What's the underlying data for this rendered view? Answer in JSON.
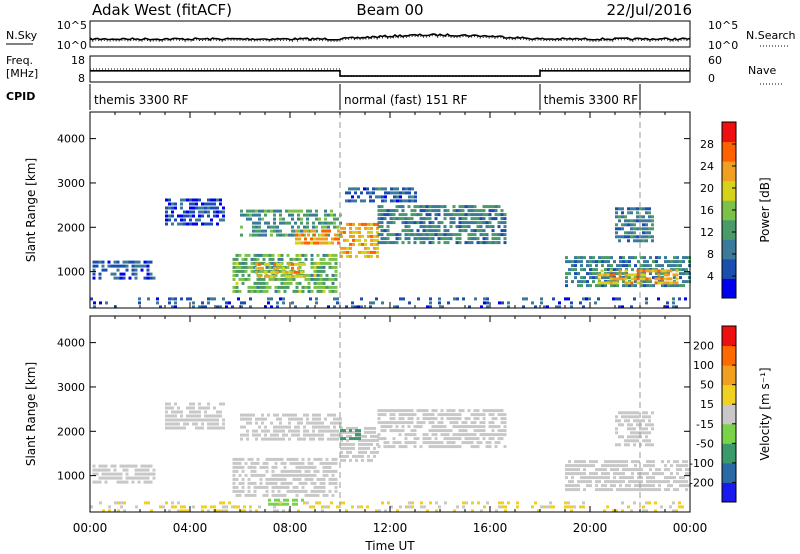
{
  "header": {
    "station": "Adak West (fitACF)",
    "beam": "Beam 00",
    "date": "22/Jul/2016"
  },
  "nsky_panel": {
    "left_label": "N.Sky",
    "right_label": "N.Search",
    "left_ticks": [
      "10^5",
      "10^0"
    ],
    "right_ticks": [
      "10^5",
      "10^0"
    ]
  },
  "freq_panel": {
    "left_label_line1": "Freq.",
    "left_label_line2": "[MHz]",
    "right_label": "Nave",
    "left_ticks": [
      "18",
      "8"
    ],
    "right_ticks": [
      "60",
      "0"
    ],
    "freq_steps": [
      {
        "from": 0,
        "to": 10,
        "mhz": 12.3
      },
      {
        "from": 10,
        "to": 18,
        "mhz": 10.3
      },
      {
        "from": 18,
        "to": 24,
        "mhz": 12.3
      }
    ],
    "nave_steps": [
      {
        "from": 0,
        "to": 10,
        "nave": 30
      },
      {
        "from": 10,
        "to": 18,
        "nave": 15
      },
      {
        "from": 18,
        "to": 24,
        "nave": 30
      }
    ]
  },
  "cpid_panel": {
    "label": "CPID",
    "segments": [
      {
        "from": 0,
        "to": 10,
        "label": "themis 3300 RF"
      },
      {
        "from": 10,
        "to": 18,
        "label": "normal (fast) 151 RF"
      },
      {
        "from": 18,
        "to": 22,
        "label": "themis 3300 RF"
      }
    ]
  },
  "x_axis": {
    "label": "Time UT",
    "range_hours": [
      0,
      24
    ],
    "ticks": [
      {
        "h": 0,
        "label": "00:00"
      },
      {
        "h": 4,
        "label": "04:00"
      },
      {
        "h": 8,
        "label": "08:00"
      },
      {
        "h": 12,
        "label": "12:00"
      },
      {
        "h": 16,
        "label": "16:00"
      },
      {
        "h": 20,
        "label": "20:00"
      },
      {
        "h": 24,
        "label": "00:00"
      }
    ],
    "dashed_marks_hours": [
      10,
      22
    ]
  },
  "chart_data": [
    {
      "type": "heatmap",
      "title": "Power",
      "ylabel": "Slant Range [km]",
      "ylim": [
        180,
        4600
      ],
      "yticks": [
        "1000",
        "2000",
        "3000",
        "4000"
      ],
      "ytick_values": [
        1000,
        2000,
        3000,
        4000
      ],
      "colorbar": {
        "label": "Power [dB]",
        "range": [
          0,
          32
        ],
        "ticks": [
          "4",
          "8",
          "12",
          "16",
          "20",
          "24",
          "28"
        ],
        "tick_values": [
          4,
          8,
          12,
          16,
          20,
          24,
          28
        ],
        "colors": [
          "#0000ee",
          "#1a4fb0",
          "#3b7a9a",
          "#4a9a6a",
          "#7cc24a",
          "#d6d21a",
          "#f0a020",
          "#ff6000",
          "#ee1010"
        ]
      },
      "regions": [
        {
          "t0": 0.1,
          "t1": 2.6,
          "r0": 850,
          "r1": 1250,
          "value": 6
        },
        {
          "t0": 3.0,
          "t1": 5.3,
          "r0": 2050,
          "r1": 2650,
          "value": 5
        },
        {
          "t0": 5.7,
          "t1": 9.8,
          "r0": 550,
          "r1": 1400,
          "value": 14
        },
        {
          "t0": 6.6,
          "t1": 8.6,
          "r0": 850,
          "r1": 1200,
          "value": 22
        },
        {
          "t0": 6.0,
          "t1": 10.0,
          "r0": 1800,
          "r1": 2400,
          "value": 12
        },
        {
          "t0": 8.2,
          "t1": 10.0,
          "r0": 1650,
          "r1": 1950,
          "value": 24
        },
        {
          "t0": 10.0,
          "t1": 11.5,
          "r0": 1300,
          "r1": 2100,
          "value": 22
        },
        {
          "t0": 10.2,
          "t1": 13.0,
          "r0": 2550,
          "r1": 2900,
          "value": 7
        },
        {
          "t0": 11.5,
          "t1": 16.6,
          "r0": 1600,
          "r1": 2500,
          "value": 10
        },
        {
          "t0": 19.0,
          "t1": 24.0,
          "r0": 650,
          "r1": 1350,
          "value": 10
        },
        {
          "t0": 20.3,
          "t1": 23.5,
          "r0": 750,
          "r1": 1050,
          "value": 22
        },
        {
          "t0": 21.0,
          "t1": 22.5,
          "r0": 1650,
          "r1": 2450,
          "value": 9
        },
        {
          "t0": 0.0,
          "t1": 24.0,
          "r0": 180,
          "r1": 420,
          "value": 6
        }
      ]
    },
    {
      "type": "heatmap",
      "title": "Velocity",
      "ylabel": "Slant Range [km]",
      "ylim": [
        180,
        4600
      ],
      "yticks": [
        "1000",
        "2000",
        "3000",
        "4000"
      ],
      "ytick_values": [
        1000,
        2000,
        3000,
        4000
      ],
      "colorbar": {
        "label": "Velocity [m s⁻¹]",
        "range": [
          -250,
          250
        ],
        "ticks": [
          "200",
          "100",
          "50",
          "15",
          "-15",
          "-50",
          "-100",
          "-200"
        ],
        "tick_values": [
          200,
          100,
          50,
          15,
          -15,
          -50,
          -100,
          -200
        ],
        "colors": [
          "#1a1aee",
          "#2a6aa6",
          "#3a9a6a",
          "#7ad24a",
          "#c8c8c8",
          "#f0d020",
          "#f0a020",
          "#ff6a00",
          "#ee1010"
        ]
      },
      "regions": [
        {
          "t0": 0.1,
          "t1": 2.6,
          "r0": 850,
          "r1": 1250,
          "value": 0
        },
        {
          "t0": 3.0,
          "t1": 5.3,
          "r0": 2050,
          "r1": 2650,
          "value": 0
        },
        {
          "t0": 5.7,
          "t1": 9.8,
          "r0": 550,
          "r1": 1400,
          "value": 0
        },
        {
          "t0": 6.0,
          "t1": 10.0,
          "r0": 1800,
          "r1": 2400,
          "value": 0
        },
        {
          "t0": 10.0,
          "t1": 11.5,
          "r0": 1300,
          "r1": 2100,
          "value": -5
        },
        {
          "t0": 10.0,
          "t1": 10.8,
          "r0": 1800,
          "r1": 2050,
          "value": -120
        },
        {
          "t0": 11.5,
          "t1": 16.6,
          "r0": 1600,
          "r1": 2500,
          "value": 5
        },
        {
          "t0": 19.0,
          "t1": 24.0,
          "r0": 650,
          "r1": 1350,
          "value": 0
        },
        {
          "t0": 21.0,
          "t1": 22.5,
          "r0": 1650,
          "r1": 2450,
          "value": 0
        },
        {
          "t0": 7.0,
          "t1": 8.6,
          "r0": 300,
          "r1": 480,
          "value": -60
        },
        {
          "t0": 0.0,
          "t1": 24.0,
          "r0": 180,
          "r1": 420,
          "value": 30
        }
      ]
    }
  ]
}
